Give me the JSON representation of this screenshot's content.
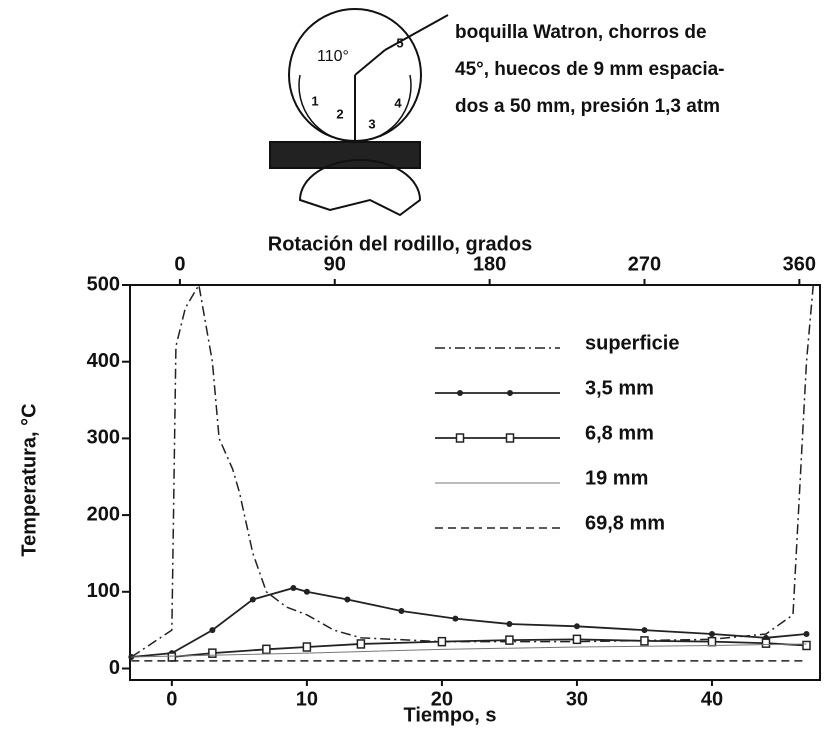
{
  "chart_data": {
    "type": "line",
    "diagram": {
      "angle_label": "110°",
      "zone_labels": [
        "1",
        "2",
        "3",
        "4",
        "5"
      ],
      "annotation": [
        "boquilla  Watron, chorros de",
        "45°, huecos de 9 mm espacia-",
        "dos a 50 mm, presión 1,3 atm"
      ]
    },
    "x2label": "Rotación del rodillo, grados",
    "xlabel": "Tiempo, s",
    "ylabel": "Temperatura, °C",
    "xlim": [
      -3.1,
      48
    ],
    "xticks": [
      0,
      10,
      20,
      30,
      40
    ],
    "x2lim": [
      -29,
      372
    ],
    "x2ticks": [
      0,
      90,
      180,
      270,
      360
    ],
    "ylim": [
      -15,
      500
    ],
    "yticks": [
      0,
      100,
      200,
      300,
      400,
      500
    ],
    "legend": "upper right",
    "series": [
      {
        "name": "superficie",
        "color": "#222",
        "style": "dashdot",
        "marker": "none",
        "x": [
          -3,
          0,
          0.3,
          1,
          2,
          3,
          3.5,
          4.5,
          5,
          6,
          7,
          8.5,
          10,
          12,
          14,
          20,
          30,
          40,
          44,
          46,
          47,
          47.5
        ],
        "values": [
          15,
          50,
          420,
          470,
          500,
          400,
          300,
          260,
          230,
          150,
          100,
          80,
          70,
          50,
          40,
          35,
          35,
          38,
          45,
          70,
          400,
          500
        ]
      },
      {
        "name": "3,5 mm",
        "color": "#222",
        "style": "solid",
        "marker": "dot",
        "x": [
          -3,
          0,
          3,
          6,
          9,
          10,
          13,
          17,
          21,
          25,
          30,
          35,
          40,
          44,
          47
        ],
        "values": [
          15,
          20,
          50,
          90,
          105,
          100,
          90,
          75,
          65,
          58,
          55,
          50,
          45,
          40,
          45
        ]
      },
      {
        "name": "6,8 mm",
        "color": "#222",
        "style": "solid",
        "marker": "square",
        "x": [
          0,
          3,
          7,
          10,
          14,
          20,
          25,
          30,
          35,
          40,
          44,
          47
        ],
        "values": [
          15,
          20,
          25,
          28,
          32,
          35,
          37,
          38,
          36,
          35,
          33,
          30
        ]
      },
      {
        "name": "19 mm",
        "color": "#777",
        "style": "thin",
        "marker": "none",
        "x": [
          -3,
          10,
          20,
          30,
          40,
          47
        ],
        "values": [
          15,
          20,
          25,
          28,
          30,
          32
        ]
      },
      {
        "name": "69,8 mm",
        "color": "#222",
        "style": "dashed",
        "marker": "none",
        "x": [
          -3,
          10,
          20,
          30,
          40,
          47
        ],
        "values": [
          10,
          10,
          10,
          10,
          10,
          10
        ]
      }
    ]
  }
}
